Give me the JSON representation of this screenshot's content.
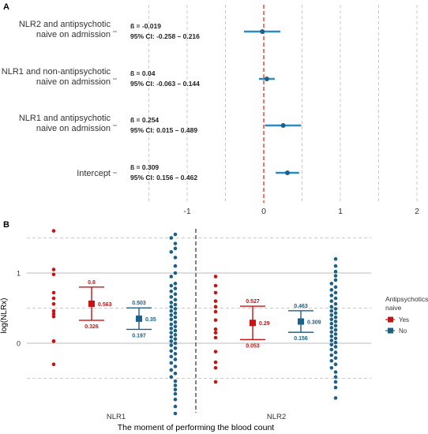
{
  "chart_data": [
    {
      "type": "scatter",
      "panel_label": "A",
      "xlabel": "",
      "ylabel": "",
      "xlim": [
        -2.0,
        2.1
      ],
      "x_ticks": [
        "-1",
        "0",
        "1",
        "2"
      ],
      "x_tick_values": [
        -1,
        0,
        1,
        2
      ],
      "reference_line_x": 0,
      "colors": {
        "point": "#1b6190",
        "ci": "#2b8cc4",
        "ref": "#e0301e",
        "grid": "#bbbbbb"
      },
      "rows": [
        {
          "label_lines": [
            "NLR2 and antipsychotic",
            "naive on admission"
          ],
          "beta_text": "ß = -0.019",
          "ci_text": "95% CI: -0.258 – 0.216",
          "estimate": -0.019,
          "ci_low": -0.258,
          "ci_high": 0.216
        },
        {
          "label_lines": [
            "NLR1 and non-antipsychotic",
            "naive on admission"
          ],
          "beta_text": "ß = 0.04",
          "ci_text": "95% CI: -0.063 – 0.144",
          "estimate": 0.04,
          "ci_low": -0.063,
          "ci_high": 0.144
        },
        {
          "label_lines": [
            "NLR1 and antipsychotic",
            "naive on admission"
          ],
          "beta_text": "ß = 0.254",
          "ci_text": "95% CI: 0.015 – 0.489",
          "estimate": 0.254,
          "ci_low": 0.015,
          "ci_high": 0.489
        },
        {
          "label_lines": [
            "Intercept"
          ],
          "beta_text": "ß = 0.309",
          "ci_text": "95% CI: 0.156 – 0.462",
          "estimate": 0.309,
          "ci_low": 0.156,
          "ci_high": 0.462
        }
      ]
    },
    {
      "type": "scatter",
      "panel_label": "B",
      "xlabel": "The moment of performing the blood count",
      "ylabel": "log(NLRx)",
      "ylim": [
        -1.1,
        1.55
      ],
      "y_ticks": [
        "0",
        "1"
      ],
      "y_tick_values": [
        0,
        1
      ],
      "dashed_grid_y": [
        -0.5,
        0.5,
        1.5
      ],
      "categories": [
        "NLR1",
        "NLR2"
      ],
      "legend": {
        "title_lines": [
          "Antipsychotics",
          "naive"
        ],
        "position": "right",
        "entries": [
          "Yes",
          "No"
        ]
      },
      "colors": {
        "Yes": "#cc1111",
        "No": "#1b6088",
        "divider": "#333333",
        "grid": "#bbbbbb"
      },
      "groups": [
        {
          "category": "NLR1",
          "naive": "Yes",
          "mean": 0.563,
          "lower": 0.326,
          "upper": 0.8,
          "labels": [
            "0.8",
            "0.563",
            "0.326"
          ],
          "points": [
            1.6,
            1.05,
            0.98,
            0.72,
            0.64,
            0.56,
            0.46,
            0.42,
            0.38,
            0.03,
            0.03,
            -0.3
          ]
        },
        {
          "category": "NLR1",
          "naive": "No",
          "mean": 0.35,
          "lower": 0.197,
          "upper": 0.503,
          "labels": [
            "0.503",
            "0.35",
            "0.197"
          ],
          "points": [
            1.55,
            1.5,
            1.42,
            1.35,
            1.3,
            1.22,
            1.1,
            1.0,
            0.95,
            0.85,
            0.82,
            0.78,
            0.74,
            0.7,
            0.66,
            0.62,
            0.58,
            0.55,
            0.52,
            0.49,
            0.46,
            0.43,
            0.4,
            0.37,
            0.34,
            0.3,
            0.27,
            0.24,
            0.21,
            0.18,
            0.15,
            0.12,
            0.09,
            0.06,
            0.03,
            0.0,
            -0.03,
            -0.07,
            -0.11,
            -0.15,
            -0.19,
            -0.23,
            -0.28,
            -0.33,
            -0.38,
            -0.43,
            -0.48,
            -0.54,
            -0.6,
            -0.66,
            -0.72,
            -0.8,
            -0.9,
            -1.0
          ]
        },
        {
          "category": "NLR2",
          "naive": "Yes",
          "mean": 0.29,
          "lower": 0.053,
          "upper": 0.527,
          "labels": [
            "0.527",
            "0.29",
            "0.053"
          ],
          "points": [
            0.95,
            0.82,
            0.72,
            0.6,
            0.52,
            0.45,
            0.33,
            0.2,
            0.15,
            0.08,
            -0.12,
            -0.27,
            -0.35,
            -0.55
          ]
        },
        {
          "category": "NLR2",
          "naive": "No",
          "mean": 0.309,
          "lower": 0.156,
          "upper": 0.463,
          "labels": [
            "0.463",
            "0.309",
            "0.156"
          ],
          "points": [
            1.2,
            1.1,
            1.02,
            0.96,
            0.9,
            0.85,
            0.8,
            0.76,
            0.72,
            0.68,
            0.64,
            0.6,
            0.56,
            0.52,
            0.49,
            0.46,
            0.43,
            0.4,
            0.37,
            0.34,
            0.31,
            0.28,
            0.25,
            0.22,
            0.19,
            0.16,
            0.13,
            0.1,
            0.07,
            0.04,
            0.01,
            -0.02,
            -0.05,
            -0.09,
            -0.13,
            -0.17,
            -0.21,
            -0.25,
            -0.3,
            -0.35,
            -0.41,
            -0.48,
            -0.55,
            -0.63,
            -0.78
          ]
        }
      ]
    }
  ]
}
